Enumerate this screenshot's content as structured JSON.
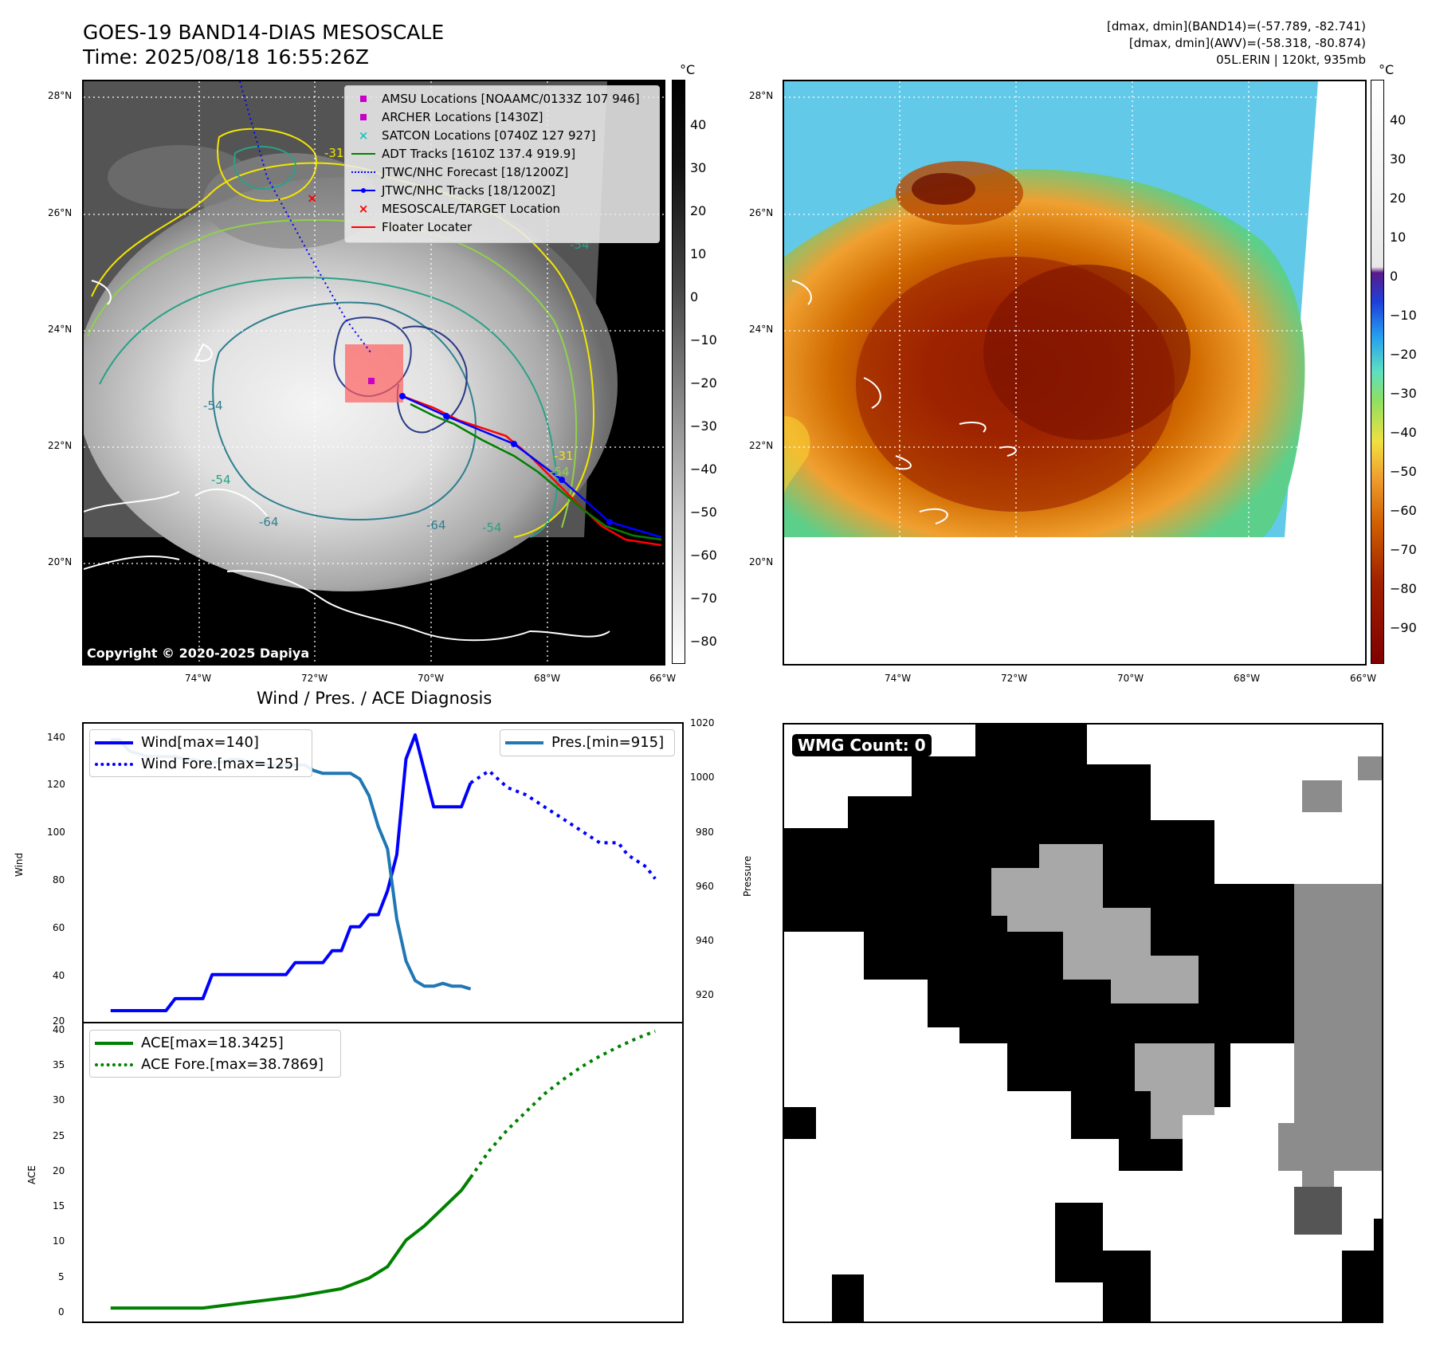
{
  "header": {
    "title": "GOES-19 BAND14-DIAS MESOSCALE",
    "time": "Time: 2025/08/18 16:55:26Z",
    "info_line1": "[dmax, dmin](BAND14)=(-57.789, -82.741)",
    "info_line2": "[dmax, dmin](AWV)=(-58.318, -80.874)",
    "info_line3": "05L.ERIN | 120kt, 935mb"
  },
  "map": {
    "lat_labels": [
      "28°N",
      "26°N",
      "24°N",
      "22°N",
      "20°N"
    ],
    "lon_labels": [
      "74°W",
      "72°W",
      "70°W",
      "68°W",
      "66°W"
    ],
    "copyright": "Copyright © 2020-2025 Dapiya",
    "contour_labels": [
      "-31",
      "-54",
      "-54",
      "-64",
      "-64",
      "-54",
      "-54",
      "-54",
      "-31"
    ],
    "legend": [
      {
        "label": "AMSU Locations [NOAAMC/0133Z 107 946]",
        "color": "#c800c8",
        "symbol": "square"
      },
      {
        "label": "ARCHER Locations [1430Z]",
        "color": "#c800c8",
        "symbol": "square"
      },
      {
        "label": "SATCON Locations [0740Z 127 927]",
        "color": "#1cc6c6",
        "symbol": "x"
      },
      {
        "label": "ADT Tracks [1610Z 137.4 919.9]",
        "color": "#008000",
        "symbol": "line"
      },
      {
        "label": "JTWC/NHC Forecast [18/1200Z]",
        "color": "#0000ff",
        "symbol": "dotted"
      },
      {
        "label": "JTWC/NHC Tracks [18/1200Z]",
        "color": "#0000ff",
        "symbol": "line-dot"
      },
      {
        "label": "MESOSCALE/TARGET Location",
        "color": "#ff0000",
        "symbol": "x"
      },
      {
        "label": "Floater Locater",
        "color": "#ff0000",
        "symbol": "line"
      }
    ]
  },
  "colorbar_gray": {
    "unit": "°C",
    "ticks": [
      "40",
      "30",
      "20",
      "10",
      "0",
      "−10",
      "−20",
      "−30",
      "−40",
      "−50",
      "−60",
      "−70",
      "−80"
    ]
  },
  "colorbar_color": {
    "unit": "°C",
    "ticks": [
      "40",
      "30",
      "20",
      "10",
      "0",
      "−10",
      "−20",
      "−30",
      "−40",
      "−50",
      "−60",
      "−70",
      "−80",
      "−90"
    ]
  },
  "wmg": {
    "label": "WMG Count: 0"
  },
  "chart_data": [
    {
      "type": "line",
      "title": "Wind / Pres. / ACE Diagnosis",
      "ylabel": "Wind",
      "ylabel_right": "Pressure",
      "ylim": [
        20,
        145
      ],
      "ylim_right": [
        913,
        1020
      ],
      "yticks": [
        "140",
        "120",
        "100",
        "80",
        "60",
        "40",
        "20"
      ],
      "yticks_right": [
        "1020",
        "1000",
        "980",
        "960",
        "940",
        "920"
      ],
      "x": [
        0,
        1,
        2,
        3,
        4,
        5,
        6,
        7,
        8,
        9,
        10,
        11,
        12,
        13,
        14,
        15,
        16,
        17,
        18,
        19,
        20,
        21,
        22,
        23,
        24,
        25,
        26,
        27,
        28,
        29,
        30,
        31,
        32,
        33,
        34,
        35,
        36,
        37,
        38,
        39
      ],
      "series": [
        {
          "name": "Wind[max=140]",
          "color": "#0000ff",
          "style": "solid",
          "x": [
            0,
            1,
            2,
            3,
            4,
            5,
            6,
            7,
            8,
            9,
            10,
            11,
            12,
            13,
            14,
            15,
            16,
            17,
            18,
            19,
            20,
            21,
            22,
            23,
            24,
            25,
            26,
            27,
            28,
            29,
            30,
            31,
            32,
            33,
            34,
            35,
            36,
            37,
            38,
            39
          ],
          "values": [
            25,
            25,
            25,
            25,
            25,
            25,
            25,
            30,
            30,
            30,
            30,
            40,
            40,
            40,
            40,
            40,
            40,
            40,
            40,
            40,
            45,
            45,
            45,
            45,
            50,
            50,
            60,
            60,
            65,
            65,
            75,
            90,
            130,
            140,
            125,
            110,
            110,
            110,
            110,
            120
          ]
        },
        {
          "name": "Wind Fore.[max=125]",
          "color": "#0000ff",
          "style": "dotted",
          "x": [
            39,
            41,
            43,
            45,
            47,
            49,
            51,
            53,
            55,
            56,
            58,
            59
          ],
          "values": [
            120,
            125,
            118,
            115,
            110,
            105,
            100,
            95,
            95,
            90,
            85,
            80
          ]
        },
        {
          "name": "Pres.[min=915]",
          "color": "#1f77b4",
          "style": "solid",
          "axis": "right",
          "x": [
            0,
            1,
            2,
            3,
            4,
            5,
            6,
            7,
            8,
            9,
            10,
            11,
            12,
            13,
            14,
            15,
            16,
            17,
            18,
            19,
            20,
            21,
            22,
            23,
            24,
            25,
            26,
            27,
            28,
            29,
            30,
            31,
            32,
            33,
            34,
            35,
            36,
            37,
            38,
            39
          ],
          "values": [
            1014,
            1014,
            1010,
            1009,
            1008,
            1008,
            1008,
            1008,
            1007,
            1007,
            1006,
            1006,
            1006,
            1007,
            1007,
            1006,
            1006,
            1005,
            1005,
            1005,
            1005,
            1005,
            1003,
            1002,
            1002,
            1002,
            1002,
            1000,
            994,
            983,
            975,
            950,
            935,
            928,
            926,
            926,
            927,
            926,
            926,
            925
          ]
        }
      ]
    },
    {
      "type": "line",
      "ylabel": "ACE",
      "ylim": [
        -2,
        40
      ],
      "yticks": [
        "40",
        "35",
        "30",
        "25",
        "20",
        "15",
        "10",
        "5",
        "0"
      ],
      "series": [
        {
          "name": "ACE[max=18.3425]",
          "color": "#008000",
          "style": "solid",
          "x": [
            0,
            5,
            10,
            15,
            20,
            25,
            28,
            30,
            32,
            34,
            36,
            38,
            39
          ],
          "values": [
            0,
            0,
            0,
            0.8,
            1.6,
            2.7,
            4.2,
            5.8,
            9.5,
            11.5,
            14,
            16.5,
            18.3
          ]
        },
        {
          "name": "ACE Fore.[max=38.7869]",
          "color": "#008000",
          "style": "dotted",
          "x": [
            39,
            41,
            43,
            45,
            47,
            49,
            51,
            53,
            55,
            57,
            59
          ],
          "values": [
            18.3,
            22,
            25,
            27.5,
            30,
            32,
            33.8,
            35.3,
            36.6,
            37.8,
            38.8
          ]
        }
      ]
    }
  ]
}
